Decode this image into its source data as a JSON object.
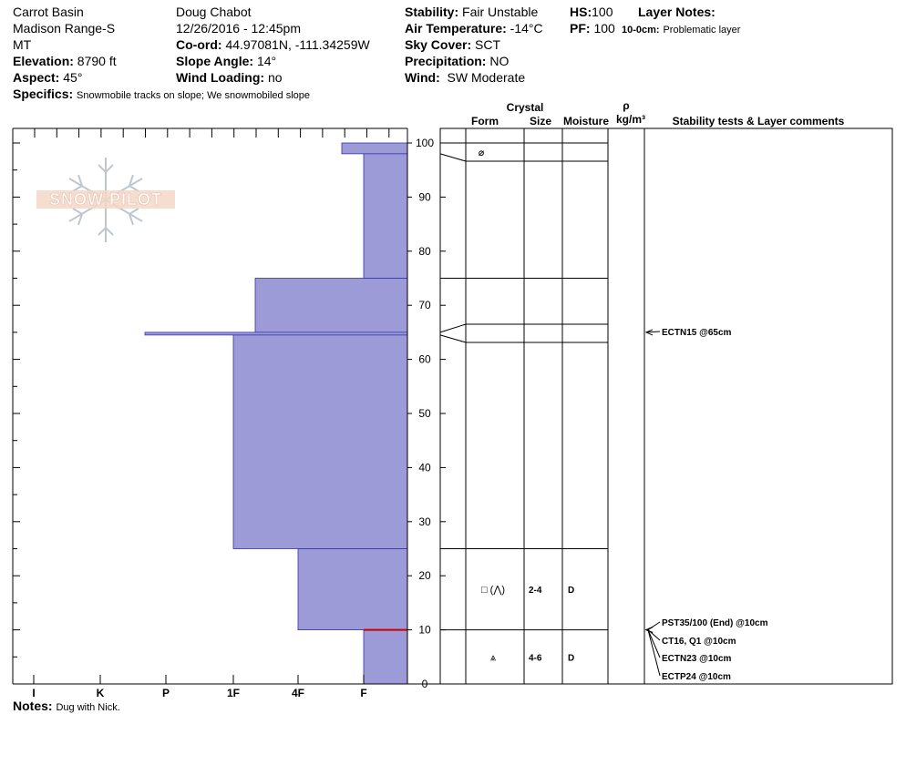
{
  "header": {
    "location": "Carrot Basin",
    "range": "Madison Range-S",
    "state": "MT",
    "elevation_label": "Elevation:",
    "elevation": "8790 ft",
    "aspect_label": "Aspect:",
    "aspect": "45°",
    "specifics_label": "Specifics:",
    "specifics": "Snowmobile tracks on slope; We snowmobiled slope",
    "observer": "Doug Chabot",
    "datetime": "12/26/2016 - 12:45pm",
    "coord_label": "Co-ord:",
    "coord": "44.97081N, -111.34259W",
    "slope_label": "Slope Angle:",
    "slope": "14°",
    "wind_loading_label": "Wind Loading:",
    "wind_loading": "no",
    "stability_label": "Stability:",
    "stability": "Fair Unstable",
    "air_temp_label": "Air Temperature:",
    "air_temp": "-14°C",
    "sky_label": "Sky Cover:",
    "sky": "SCT",
    "precip_label": "Precipitation:",
    "precip": "NO",
    "wind_label": "Wind:",
    "wind": "SW Moderate",
    "hs_label": "HS:",
    "hs": "100",
    "pf_label": "PF:",
    "pf": "100",
    "layer_notes_label": "Layer Notes:",
    "layer_note_range": "10-0cm:",
    "layer_note_text": "Problematic layer"
  },
  "notes_label": "Notes:",
  "notes": "Dug with Nick.",
  "logo_text": "SNOW PILOT",
  "table_headers": {
    "crystal": "Crystal",
    "form": "Form",
    "size": "Size",
    "moisture": "Moisture",
    "rho": "ρ",
    "density_unit": "kg/m³",
    "comments": "Stability tests & Layer comments"
  },
  "colors": {
    "hardness_fill": "#9c9bd7",
    "hardness_stroke": "#3333aa",
    "problem_line": "#cc0000"
  },
  "chart_data": {
    "type": "bar",
    "xlabel": "",
    "ylabel": "",
    "ylim": [
      0,
      100
    ],
    "y_ticks": [
      0,
      10,
      20,
      30,
      40,
      50,
      60,
      70,
      80,
      90,
      100
    ],
    "hardness_categories": [
      "I",
      "K",
      "P",
      "1F",
      "4F",
      "F"
    ],
    "layers": [
      {
        "top": 100,
        "bottom": 98,
        "hardness": "F+"
      },
      {
        "top": 98,
        "bottom": 75,
        "hardness": "F"
      },
      {
        "top": 75,
        "bottom": 65,
        "hardness": "1F+"
      },
      {
        "top": 65,
        "bottom": 64.5,
        "hardness": "P"
      },
      {
        "top": 64.5,
        "bottom": 25,
        "hardness": "1F"
      },
      {
        "top": 25,
        "bottom": 10,
        "hardness": "4F"
      },
      {
        "top": 10,
        "bottom": 0,
        "hardness": "F"
      }
    ],
    "layer_details": [
      {
        "y": 17.5,
        "form": "□ (⋀)",
        "size": "2-4",
        "moisture": "D"
      },
      {
        "y": 5,
        "form": "⩓",
        "size": "4-6",
        "moisture": "D"
      }
    ],
    "crystal_symbols": [
      {
        "y": 98,
        "symbol": "⌀"
      }
    ],
    "stability_tests": [
      {
        "depth": 65,
        "label": "ECTN15 @65cm"
      },
      {
        "depth": 10,
        "label": "PST35/100 (End) @10cm"
      },
      {
        "depth": 10,
        "label": "CT16, Q1 @10cm"
      },
      {
        "depth": 10,
        "label": "ECTN23 @10cm"
      },
      {
        "depth": 10,
        "label": "ECTP24 @10cm"
      }
    ]
  }
}
